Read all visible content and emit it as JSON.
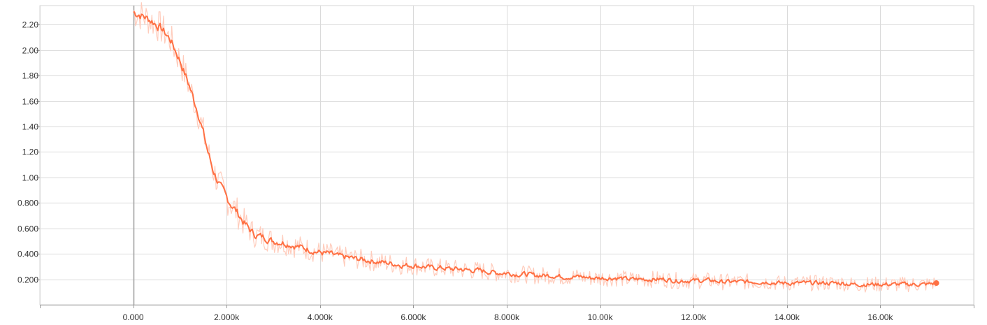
{
  "chart_data": {
    "type": "line",
    "title": "",
    "xlabel": "",
    "ylabel": "",
    "xlim": [
      -2000,
      18000
    ],
    "ylim": [
      0,
      2.35
    ],
    "x_ticks": [
      0,
      2000,
      4000,
      6000,
      8000,
      10000,
      12000,
      14000,
      16000
    ],
    "x_tick_labels": [
      "0.000",
      "2.000k",
      "4.000k",
      "6.000k",
      "8.000k",
      "10.00k",
      "12.00k",
      "14.00k",
      "16.00k"
    ],
    "y_ticks": [
      0.2,
      0.4,
      0.6,
      0.8,
      1.0,
      1.2,
      1.4,
      1.6,
      1.8,
      2.0,
      2.2
    ],
    "y_tick_labels": [
      "0.200",
      "0.400",
      "0.600",
      "0.800",
      "1.00",
      "1.20",
      "1.40",
      "1.60",
      "1.80",
      "2.00",
      "2.20"
    ],
    "grid": true,
    "series": [
      {
        "color": "#ff7043",
        "raw_color": "#ffccbc",
        "x": [
          0,
          200,
          400,
          600,
          800,
          1000,
          1200,
          1400,
          1600,
          1700,
          1800,
          1900,
          2000,
          2200,
          2400,
          2600,
          2800,
          3000,
          3200,
          3400,
          3600,
          3800,
          4000,
          4200,
          4400,
          4600,
          4800,
          5000,
          5200,
          5400,
          5600,
          5800,
          6000,
          6200,
          6400,
          6600,
          6800,
          7000,
          7200,
          7400,
          7600,
          7800,
          8000,
          8200,
          8400,
          8600,
          8800,
          9000,
          9200,
          9400,
          9600,
          9800,
          10000,
          10200,
          10400,
          10600,
          10800,
          11000,
          11200,
          11400,
          11600,
          11800,
          12000,
          12200,
          12400,
          12600,
          12800,
          13000,
          13200,
          13400,
          13600,
          13800,
          14000,
          14200,
          14400,
          14600,
          14800,
          15000,
          15200,
          15400,
          15600,
          15800,
          16000,
          16200,
          16400,
          16600,
          16800,
          17000,
          17200
        ],
        "values": [
          2.3,
          2.27,
          2.23,
          2.17,
          2.08,
          1.92,
          1.72,
          1.5,
          1.2,
          1.07,
          0.98,
          0.9,
          0.84,
          0.74,
          0.63,
          0.55,
          0.53,
          0.5,
          0.49,
          0.47,
          0.45,
          0.43,
          0.41,
          0.4,
          0.38,
          0.37,
          0.36,
          0.35,
          0.34,
          0.33,
          0.32,
          0.31,
          0.31,
          0.3,
          0.29,
          0.29,
          0.28,
          0.28,
          0.27,
          0.27,
          0.26,
          0.25,
          0.25,
          0.24,
          0.24,
          0.23,
          0.23,
          0.23,
          0.22,
          0.22,
          0.22,
          0.21,
          0.21,
          0.21,
          0.21,
          0.2,
          0.2,
          0.2,
          0.2,
          0.2,
          0.19,
          0.19,
          0.19,
          0.19,
          0.19,
          0.18,
          0.18,
          0.18,
          0.18,
          0.18,
          0.18,
          0.17,
          0.17,
          0.17,
          0.17,
          0.17,
          0.17,
          0.17,
          0.17,
          0.16,
          0.16,
          0.16,
          0.16,
          0.16,
          0.16,
          0.16,
          0.16,
          0.16,
          0.17
        ]
      }
    ]
  }
}
